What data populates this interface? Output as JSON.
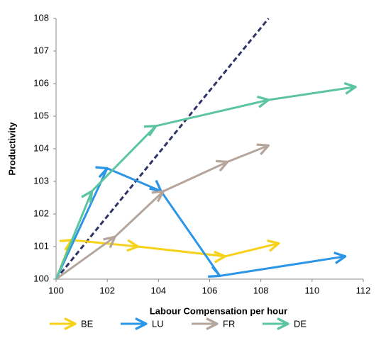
{
  "chart_data": {
    "type": "line",
    "x_label": "Labour Compensation per hour",
    "y_label": "Productivity",
    "xlim": [
      100,
      112
    ],
    "xticks": [
      100,
      102,
      104,
      106,
      108,
      110,
      112
    ],
    "ylim": [
      100,
      108
    ],
    "yticks": [
      100,
      101,
      102,
      103,
      104,
      105,
      106,
      107,
      108
    ],
    "grid": false,
    "legend": "bottom",
    "series": [
      {
        "name": "BE",
        "color": "#f7d21c",
        "x": [
          100,
          100.6,
          103.2,
          106.6,
          108.7
        ],
        "values": [
          100,
          101.2,
          101.0,
          100.7,
          101.1
        ]
      },
      {
        "name": "LU",
        "color": "#2b95e6",
        "x": [
          100,
          102.0,
          104.1,
          106.4,
          111.3
        ],
        "values": [
          100,
          103.4,
          102.7,
          100.1,
          100.7
        ]
      },
      {
        "name": "FR",
        "color": "#b4a69d",
        "x": [
          100,
          102.3,
          104.2,
          106.7,
          108.3
        ],
        "values": [
          100,
          101.3,
          102.7,
          103.6,
          104.1
        ]
      },
      {
        "name": "DE",
        "color": "#5cc4a0",
        "x": [
          100,
          101.4,
          103.9,
          108.3,
          111.7
        ],
        "values": [
          100,
          102.7,
          104.7,
          105.5,
          105.9
        ]
      }
    ],
    "diagonal": {
      "color": "#2e3566",
      "x": [
        100,
        108.3
      ],
      "values": [
        100,
        108
      ]
    }
  }
}
